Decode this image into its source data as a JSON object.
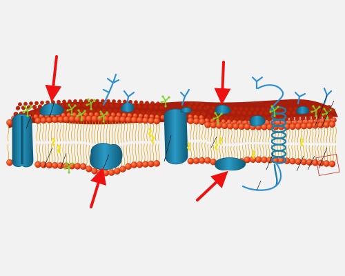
{
  "colors": {
    "background": "#f2f2f2",
    "phospholipid_head": "#e8461a",
    "phospholipid_head_dark": "#b8260a",
    "top_surface": "#a81e0c",
    "lipid_tail": "#e0a210",
    "cholesterol": "#f2e21c",
    "glycolipid_chain": "#7ed321",
    "protein": "#1f7fa6",
    "protein_dark": "#0f5a78",
    "glycan": "#2f8fd0",
    "arrow": "#ee1111",
    "label_line": "#111111",
    "label_box": "#cc2222"
  },
  "diagram": {
    "subject": "cell-membrane-fluid-mosaic",
    "unlabeled_arrows": 4,
    "icons": [
      "peripheral-protein",
      "integral-protein",
      "channel-protein",
      "alpha-helix-protein",
      "glycoprotein",
      "glycolipid",
      "cholesterol",
      "phospholipid"
    ]
  }
}
